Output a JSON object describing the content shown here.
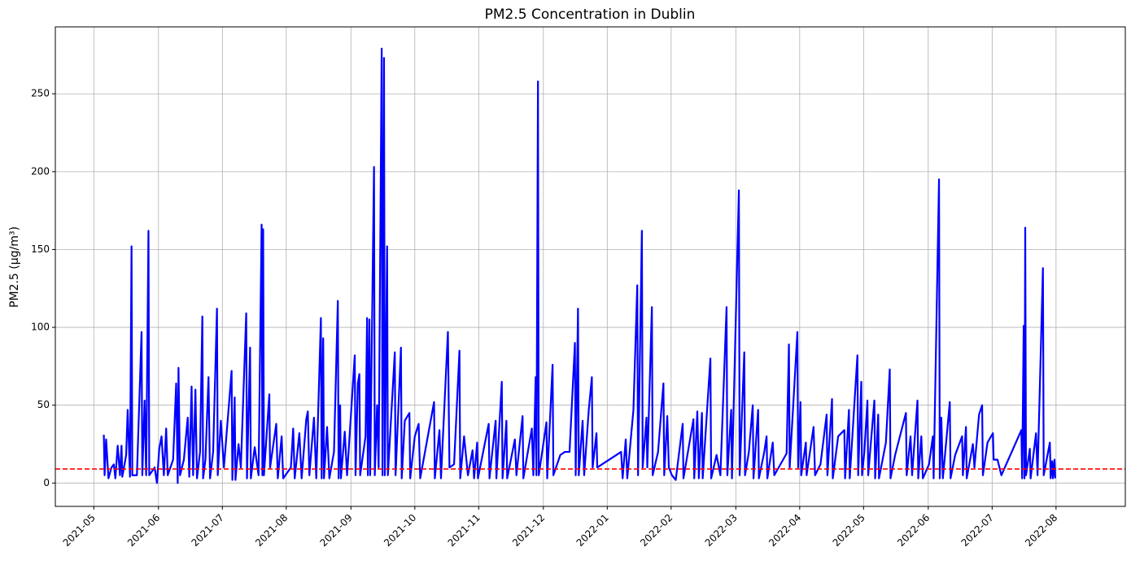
{
  "chart_data": {
    "type": "line",
    "title": "PM2.5 Concentration in Dublin",
    "ylabel": "PM2.5 (µg/m³)",
    "color": "#0000ff",
    "grid": true,
    "hline": {
      "value": 9,
      "color": "#ff0000",
      "style": "dashed"
    },
    "xlim": [
      2021.283,
      2022.673
    ],
    "ylim": [
      -15,
      293
    ],
    "yticks": [
      0,
      50,
      100,
      150,
      200,
      250
    ],
    "xticks": [
      {
        "value": 2021.333,
        "label": "2021-05"
      },
      {
        "value": 2021.417,
        "label": "2021-06"
      },
      {
        "value": 2021.5,
        "label": "2021-07"
      },
      {
        "value": 2021.583,
        "label": "2021-08"
      },
      {
        "value": 2021.667,
        "label": "2021-09"
      },
      {
        "value": 2021.75,
        "label": "2021-10"
      },
      {
        "value": 2021.833,
        "label": "2021-11"
      },
      {
        "value": 2021.917,
        "label": "2021-12"
      },
      {
        "value": 2022.0,
        "label": "2022-01"
      },
      {
        "value": 2022.083,
        "label": "2022-02"
      },
      {
        "value": 2022.167,
        "label": "2022-03"
      },
      {
        "value": 2022.25,
        "label": "2022-04"
      },
      {
        "value": 2022.333,
        "label": "2022-05"
      },
      {
        "value": 2022.417,
        "label": "2022-06"
      },
      {
        "value": 2022.5,
        "label": "2022-07"
      },
      {
        "value": 2022.583,
        "label": "2022-08"
      }
    ],
    "x": [
      2021.346,
      2021.347,
      2021.349,
      2021.352,
      2021.356,
      2021.359,
      2021.361,
      2021.364,
      2021.367,
      2021.369,
      2021.37,
      2021.375,
      2021.377,
      2021.38,
      2021.382,
      2021.383,
      2021.389,
      2021.395,
      2021.396,
      2021.399,
      2021.401,
      2021.404,
      2021.405,
      2021.412,
      2021.415,
      2021.418,
      2021.421,
      2021.424,
      2021.427,
      2021.429,
      2021.436,
      2021.44,
      2021.442,
      2021.443,
      2021.445,
      2021.45,
      2021.455,
      2021.457,
      2021.46,
      2021.462,
      2021.465,
      2021.467,
      2021.471,
      2021.474,
      2021.475,
      2021.478,
      2021.482,
      2021.484,
      2021.488,
      2021.493,
      2021.494,
      2021.498,
      2021.502,
      2021.512,
      2021.513,
      2021.516,
      2021.517,
      2021.521,
      2021.524,
      2021.531,
      2021.532,
      2021.536,
      2021.537,
      2021.542,
      2021.547,
      2021.551,
      2021.552,
      2021.553,
      2021.554,
      2021.561,
      2021.562,
      2021.57,
      2021.572,
      2021.577,
      2021.579,
      2021.589,
      2021.592,
      2021.594,
      2021.6,
      2021.603,
      2021.609,
      2021.611,
      2021.613,
      2021.619,
      2021.622,
      2021.628,
      2021.629,
      2021.631,
      2021.632,
      2021.636,
      2021.639,
      2021.645,
      2021.65,
      2021.651,
      2021.653,
      2021.654,
      2021.659,
      2021.662,
      2021.672,
      2021.673,
      2021.676,
      2021.678,
      2021.679,
      2021.686,
      2021.688,
      2021.689,
      2021.691,
      2021.692,
      2021.697,
      2021.698,
      2021.701,
      2021.703,
      2021.707,
      2021.708,
      2021.71,
      2021.711,
      2021.714,
      2021.715,
      2021.724,
      2021.725,
      2021.732,
      2021.733,
      2021.737,
      2021.743,
      2021.744,
      2021.75,
      2021.755,
      2021.757,
      2021.775,
      2021.776,
      2021.782,
      2021.784,
      2021.793,
      2021.795,
      2021.801,
      2021.808,
      2021.809,
      2021.814,
      2021.819,
      2021.825,
      2021.827,
      2021.831,
      2021.832,
      2021.846,
      2021.847,
      2021.855,
      2021.856,
      2021.863,
      2021.864,
      2021.869,
      2021.87,
      2021.88,
      2021.882,
      2021.89,
      2021.891,
      2021.902,
      2021.904,
      2021.907,
      2021.908,
      2021.91,
      2021.911,
      2021.914,
      2021.921,
      2021.922,
      2021.929,
      2021.93,
      2021.939,
      2021.945,
      2021.951,
      2021.958,
      2021.959,
      2021.962,
      2021.963,
      2021.968,
      2021.97,
      2021.976,
      2021.98,
      2021.981,
      2021.986,
      2021.987,
      2022.018,
      2022.02,
      2022.024,
      2022.026,
      2022.034,
      2022.039,
      2022.04,
      2022.045,
      2022.046,
      2022.051,
      2022.052,
      2022.058,
      2022.059,
      2022.066,
      2022.073,
      2022.074,
      2022.078,
      2022.08,
      2022.084,
      2022.089,
      2022.098,
      2022.099,
      2022.112,
      2022.113,
      2022.117,
      2022.119,
      2022.123,
      2022.124,
      2022.134,
      2022.135,
      2022.142,
      2022.147,
      2022.155,
      2022.156,
      2022.161,
      2022.162,
      2022.171,
      2022.172,
      2022.178,
      2022.179,
      2022.184,
      2022.189,
      2022.19,
      2022.196,
      2022.197,
      2022.204,
      2022.207,
      2022.208,
      2022.215,
      2022.217,
      2022.233,
      2022.236,
      2022.237,
      2022.247,
      2022.248,
      2022.251,
      2022.252,
      2022.258,
      2022.259,
      2022.268,
      2022.27,
      2022.277,
      2022.285,
      2022.286,
      2022.292,
      2022.293,
      2022.3,
      2022.308,
      2022.309,
      2022.314,
      2022.315,
      2022.325,
      2022.326,
      2022.33,
      2022.331,
      2022.334,
      2022.338,
      2022.339,
      2022.347,
      2022.348,
      2022.352,
      2022.353,
      2022.362,
      2022.367,
      2022.368,
      2022.374,
      2022.388,
      2022.389,
      2022.394,
      2022.396,
      2022.403,
      2022.404,
      2022.408,
      2022.41,
      2022.418,
      2022.423,
      2022.424,
      2022.431,
      2022.432,
      2022.434,
      2022.436,
      2022.445,
      2022.446,
      2022.452,
      2022.461,
      2022.462,
      2022.466,
      2022.467,
      2022.475,
      2022.477,
      2022.483,
      2022.487,
      2022.488,
      2022.494,
      2022.501,
      2022.502,
      2022.507,
      2022.512,
      2022.538,
      2022.539,
      2022.541,
      2022.542,
      2022.543,
      2022.544,
      2022.549,
      2022.55,
      2022.557,
      2022.559,
      2022.566,
      2022.567,
      2022.575,
      2022.576,
      2022.578,
      2022.579,
      2022.581,
      2022.582
    ],
    "values": [
      31,
      5,
      28,
      3,
      10,
      12,
      3,
      24,
      5,
      24,
      4,
      18,
      47,
      4,
      152,
      5,
      5,
      97,
      5,
      53,
      5,
      162,
      5,
      10,
      0,
      22,
      30,
      5,
      35,
      5,
      15,
      64,
      0,
      74,
      5,
      15,
      42,
      4,
      62,
      5,
      60,
      3,
      20,
      107,
      3,
      15,
      68,
      3,
      20,
      112,
      5,
      40,
      10,
      72,
      2,
      55,
      2,
      25,
      10,
      109,
      3,
      87,
      3,
      23,
      5,
      166,
      5,
      163,
      5,
      57,
      10,
      38,
      3,
      30,
      3,
      10,
      35,
      3,
      32,
      3,
      41,
      46,
      5,
      42,
      3,
      106,
      3,
      93,
      3,
      36,
      3,
      20,
      117,
      3,
      50,
      3,
      33,
      5,
      82,
      5,
      64,
      70,
      5,
      30,
      106,
      5,
      105,
      5,
      203,
      5,
      50,
      10,
      279,
      5,
      273,
      5,
      152,
      5,
      84,
      5,
      87,
      3,
      40,
      45,
      3,
      30,
      38,
      3,
      52,
      3,
      34,
      3,
      97,
      10,
      12,
      85,
      3,
      30,
      5,
      21,
      3,
      26,
      3,
      38,
      3,
      40,
      3,
      65,
      3,
      40,
      3,
      28,
      5,
      43,
      3,
      35,
      5,
      68,
      5,
      258,
      5,
      15,
      39,
      3,
      76,
      5,
      18,
      20,
      20,
      90,
      5,
      112,
      5,
      40,
      5,
      47,
      68,
      10,
      32,
      10,
      20,
      3,
      28,
      3,
      47,
      127,
      5,
      162,
      10,
      42,
      10,
      113,
      5,
      20,
      64,
      5,
      43,
      10,
      5,
      2,
      38,
      3,
      41,
      3,
      46,
      3,
      45,
      3,
      80,
      3,
      18,
      5,
      113,
      5,
      47,
      3,
      188,
      5,
      84,
      5,
      20,
      50,
      3,
      47,
      3,
      20,
      30,
      3,
      26,
      5,
      19,
      89,
      10,
      97,
      10,
      52,
      5,
      26,
      5,
      36,
      5,
      12,
      44,
      5,
      54,
      3,
      30,
      34,
      3,
      47,
      3,
      82,
      5,
      65,
      5,
      20,
      53,
      5,
      53,
      3,
      44,
      3,
      26,
      73,
      3,
      18,
      45,
      5,
      30,
      5,
      53,
      3,
      30,
      3,
      12,
      30,
      3,
      195,
      3,
      42,
      3,
      52,
      3,
      18,
      30,
      5,
      36,
      3,
      25,
      10,
      44,
      50,
      5,
      26,
      32,
      15,
      15,
      5,
      34,
      3,
      101,
      3,
      164,
      5,
      22,
      3,
      32,
      5,
      138,
      5,
      26,
      3,
      14,
      3,
      15,
      3
    ]
  }
}
